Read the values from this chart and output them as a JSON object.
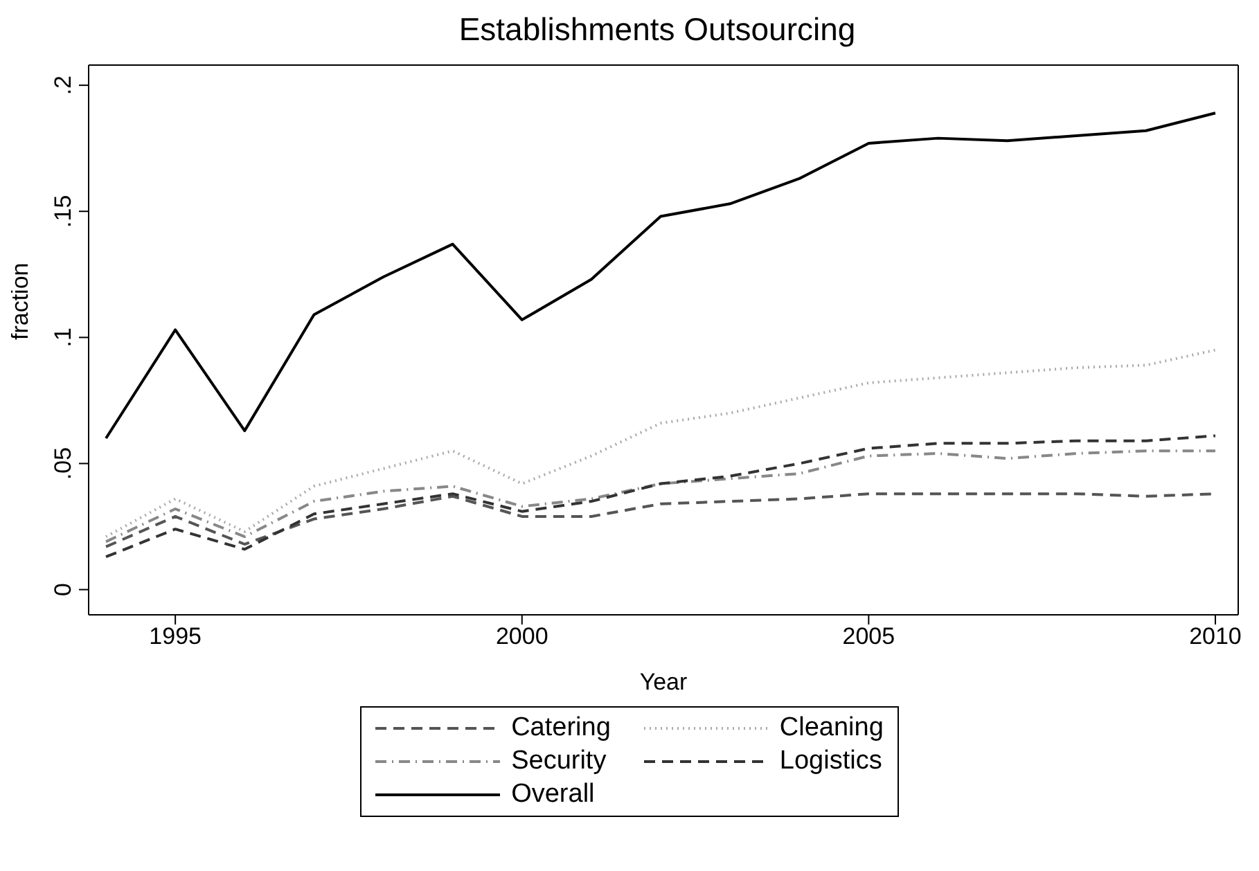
{
  "chart_data": {
    "type": "line",
    "title": "Establishments Outsourcing",
    "xlabel": "Year",
    "ylabel": "fraction",
    "x": [
      1994,
      1995,
      1996,
      1997,
      1998,
      1999,
      2000,
      2001,
      2002,
      2003,
      2004,
      2005,
      2006,
      2007,
      2008,
      2009,
      2010
    ],
    "xlim": [
      1993.75,
      2010.33
    ],
    "xticks": [
      1995,
      2000,
      2005,
      2010
    ],
    "ylim": [
      -0.01,
      0.208
    ],
    "yticks": [
      {
        "value": 0,
        "label": "0"
      },
      {
        "value": 0.05,
        "label": ".05"
      },
      {
        "value": 0.1,
        "label": ".1"
      },
      {
        "value": 0.15,
        "label": ".15"
      },
      {
        "value": 0.2,
        "label": ".2"
      }
    ],
    "grid": false,
    "legend": "bottom",
    "marker": "none",
    "series": [
      {
        "name": "Catering",
        "color": "#555555",
        "line_style": "dashed",
        "values": [
          0.017,
          0.029,
          0.018,
          0.028,
          0.032,
          0.037,
          0.029,
          0.029,
          0.034,
          0.035,
          0.036,
          0.038,
          0.038,
          0.038,
          0.038,
          0.037,
          0.038
        ]
      },
      {
        "name": "Cleaning",
        "color": "#aaaaaa",
        "line_style": "dotted",
        "values": [
          0.021,
          0.036,
          0.023,
          0.041,
          0.048,
          0.055,
          0.042,
          0.053,
          0.066,
          0.07,
          0.076,
          0.082,
          0.084,
          0.086,
          0.088,
          0.089,
          0.095
        ]
      },
      {
        "name": "Security",
        "color": "#888888",
        "line_style": "dashdot",
        "values": [
          0.019,
          0.032,
          0.021,
          0.035,
          0.039,
          0.041,
          0.033,
          0.036,
          0.042,
          0.044,
          0.046,
          0.053,
          0.054,
          0.052,
          0.054,
          0.055,
          0.055
        ]
      },
      {
        "name": "Logistics",
        "color": "#333333",
        "line_style": "dashed",
        "values": [
          0.013,
          0.024,
          0.016,
          0.03,
          0.034,
          0.038,
          0.031,
          0.035,
          0.042,
          0.045,
          0.05,
          0.056,
          0.058,
          0.058,
          0.059,
          0.059,
          0.061
        ]
      },
      {
        "name": "Overall",
        "color": "#000000",
        "line_style": "solid",
        "values": [
          0.06,
          0.103,
          0.063,
          0.109,
          0.124,
          0.137,
          0.107,
          0.123,
          0.148,
          0.153,
          0.163,
          0.177,
          0.179,
          0.178,
          0.18,
          0.182,
          0.189
        ]
      }
    ]
  }
}
